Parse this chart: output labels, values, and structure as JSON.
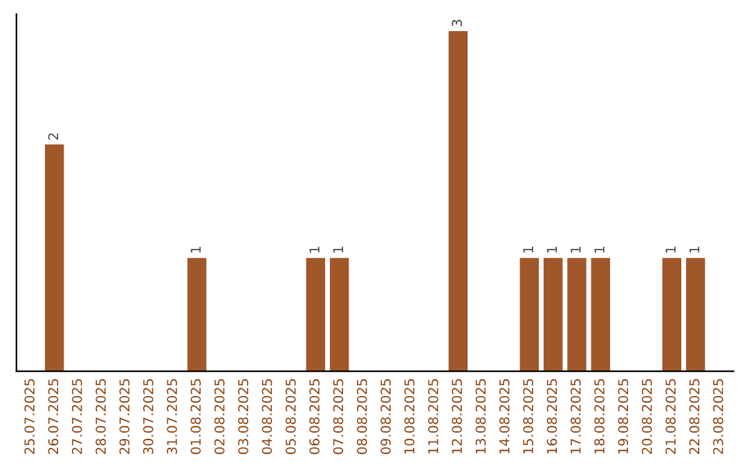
{
  "chart_data": {
    "type": "bar",
    "categories": [
      "25.07.2025",
      "26.07.2025",
      "27.07.2025",
      "28.07.2025",
      "29.07.2025",
      "30.07.2025",
      "31.07.2025",
      "01.08.2025",
      "02.08.2025",
      "03.08.2025",
      "04.08.2025",
      "05.08.2025",
      "06.08.2025",
      "07.08.2025",
      "08.08.2025",
      "09.08.2025",
      "10.08.2025",
      "11.08.2025",
      "12.08.2025",
      "13.08.2025",
      "14.08.2025",
      "15.08.2025",
      "16.08.2025",
      "17.08.2025",
      "18.08.2025",
      "19.08.2025",
      "20.08.2025",
      "21.08.2025",
      "22.08.2025",
      "23.08.2025"
    ],
    "values": [
      0,
      2,
      0,
      0,
      0,
      0,
      0,
      1,
      0,
      0,
      0,
      0,
      1,
      1,
      0,
      0,
      0,
      0,
      3,
      0,
      0,
      1,
      1,
      1,
      1,
      0,
      0,
      1,
      1,
      0
    ],
    "value_labels": [
      null,
      "2",
      null,
      null,
      null,
      null,
      null,
      "1",
      null,
      null,
      null,
      null,
      "1",
      "1",
      null,
      null,
      null,
      null,
      "3",
      null,
      null,
      "1",
      "1",
      "1",
      "1",
      null,
      null,
      "1",
      "1",
      null
    ],
    "color": "#a0572a",
    "tick_labels": "x",
    "grid": false
  }
}
